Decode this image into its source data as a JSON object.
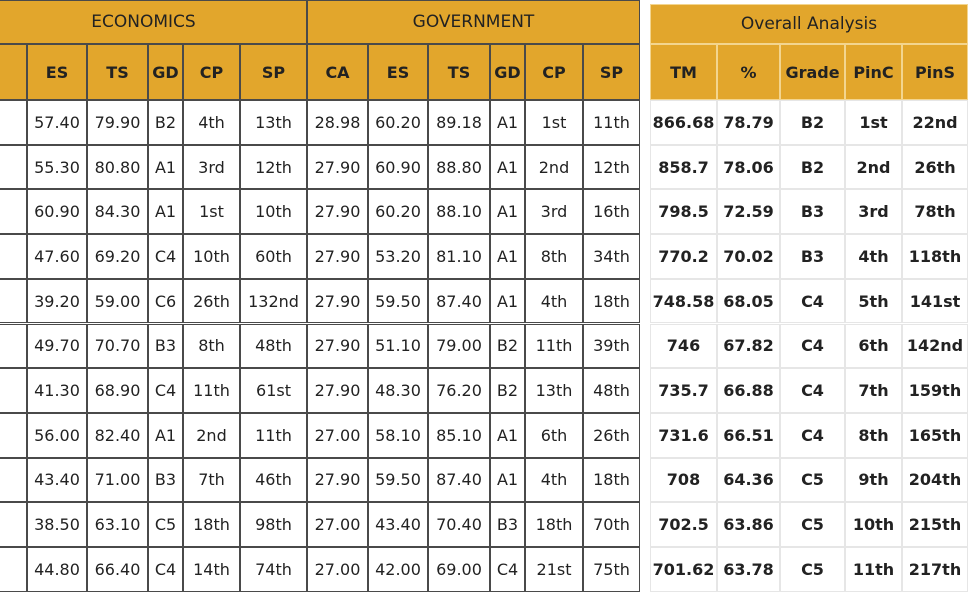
{
  "left_table": {
    "groups": [
      "ECONOMICS",
      "GOVERNMENT"
    ],
    "columns": [
      "ES",
      "TS",
      "GD",
      "CP",
      "SP",
      "CA",
      "ES",
      "TS",
      "GD",
      "CP",
      "SP"
    ],
    "rows": [
      [
        "57.40",
        "79.90",
        "B2",
        "4th",
        "13th",
        "28.98",
        "60.20",
        "89.18",
        "A1",
        "1st",
        "11th"
      ],
      [
        "55.30",
        "80.80",
        "A1",
        "3rd",
        "12th",
        "27.90",
        "60.90",
        "88.80",
        "A1",
        "2nd",
        "12th"
      ],
      [
        "60.90",
        "84.30",
        "A1",
        "1st",
        "10th",
        "27.90",
        "60.20",
        "88.10",
        "A1",
        "3rd",
        "16th"
      ],
      [
        "47.60",
        "69.20",
        "C4",
        "10th",
        "60th",
        "27.90",
        "53.20",
        "81.10",
        "A1",
        "8th",
        "34th"
      ],
      [
        "39.20",
        "59.00",
        "C6",
        "26th",
        "132nd",
        "27.90",
        "59.50",
        "87.40",
        "A1",
        "4th",
        "18th"
      ],
      [
        "49.70",
        "70.70",
        "B3",
        "8th",
        "48th",
        "27.90",
        "51.10",
        "79.00",
        "B2",
        "11th",
        "39th"
      ],
      [
        "41.30",
        "68.90",
        "C4",
        "11th",
        "61st",
        "27.90",
        "48.30",
        "76.20",
        "B2",
        "13th",
        "48th"
      ],
      [
        "56.00",
        "82.40",
        "A1",
        "2nd",
        "11th",
        "27.00",
        "58.10",
        "85.10",
        "A1",
        "6th",
        "26th"
      ],
      [
        "43.40",
        "71.00",
        "B3",
        "7th",
        "46th",
        "27.90",
        "59.50",
        "87.40",
        "A1",
        "4th",
        "18th"
      ],
      [
        "38.50",
        "63.10",
        "C5",
        "18th",
        "98th",
        "27.00",
        "43.40",
        "70.40",
        "B3",
        "18th",
        "70th"
      ],
      [
        "44.80",
        "66.40",
        "C4",
        "14th",
        "74th",
        "27.00",
        "42.00",
        "69.00",
        "C4",
        "21st",
        "75th"
      ]
    ]
  },
  "right_table": {
    "title": "Overall Analysis",
    "columns": [
      "TM",
      "%",
      "Grade",
      "PinC",
      "PinS"
    ],
    "rows": [
      [
        "866.68",
        "78.79",
        "B2",
        "1st",
        "22nd"
      ],
      [
        "858.7",
        "78.06",
        "B2",
        "2nd",
        "26th"
      ],
      [
        "798.5",
        "72.59",
        "B3",
        "3rd",
        "78th"
      ],
      [
        "770.2",
        "70.02",
        "B3",
        "4th",
        "118th"
      ],
      [
        "748.58",
        "68.05",
        "C4",
        "5th",
        "141st"
      ],
      [
        "746",
        "67.82",
        "C4",
        "6th",
        "142nd"
      ],
      [
        "735.7",
        "66.88",
        "C4",
        "7th",
        "159th"
      ],
      [
        "731.6",
        "66.51",
        "C4",
        "8th",
        "165th"
      ],
      [
        "708",
        "64.36",
        "C5",
        "9th",
        "204th"
      ],
      [
        "702.5",
        "63.86",
        "C5",
        "10th",
        "215th"
      ],
      [
        "701.62",
        "63.78",
        "C5",
        "11th",
        "217th"
      ]
    ]
  }
}
